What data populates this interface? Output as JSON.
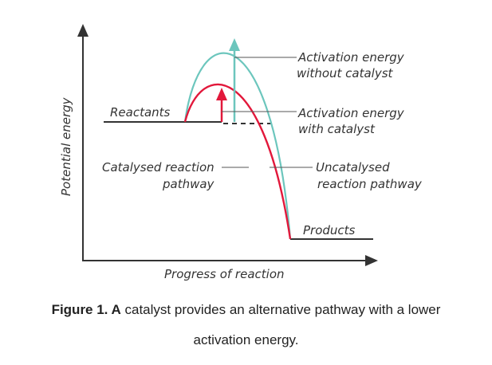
{
  "diagram": {
    "axis_y_label": "Potential energy",
    "axis_x_label": "Progress of reaction",
    "reactants_label": "Reactants",
    "products_label": "Products",
    "ea_uncat_line1": "Activation energy",
    "ea_uncat_line2": "without catalyst",
    "ea_cat_line1": "Activation energy",
    "ea_cat_line2": "with catalyst",
    "cat_path_line1": "Catalysed reaction",
    "cat_path_line2": "pathway",
    "uncat_path_line1": "Uncatalysed",
    "uncat_path_line2": "reaction pathway",
    "colors": {
      "uncatalysed": "#6cc6bd",
      "catalysed": "#e2183b",
      "axes": "#333333"
    }
  },
  "caption": {
    "bold": "Figure 1. A",
    "text_line1": " catalyst provides an alternative pathway with a lower",
    "text_line2": "activation energy."
  }
}
